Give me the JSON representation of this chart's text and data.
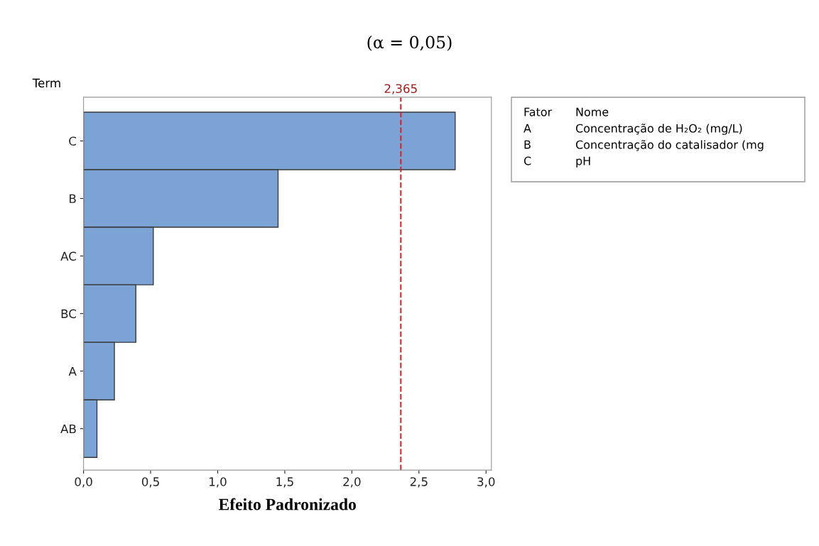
{
  "chart_data": {
    "type": "bar",
    "orientation": "horizontal",
    "title": "(α = 0,05)",
    "xlabel": "Efeito Padronizado",
    "ylabel": "Term",
    "categories": [
      "C",
      "B",
      "AC",
      "BC",
      "A",
      "AB"
    ],
    "values": [
      2.77,
      1.45,
      0.52,
      0.39,
      0.23,
      0.1
    ],
    "color": "#7ba3d6",
    "xlim": [
      0,
      3.04
    ],
    "xticks": [
      {
        "value": 0,
        "label": "0,0"
      },
      {
        "value": 0.5,
        "label": "0,5"
      },
      {
        "value": 1.0,
        "label": "1,0"
      },
      {
        "value": 1.5,
        "label": "1,5"
      },
      {
        "value": 2.0,
        "label": "2,0"
      },
      {
        "value": 2.5,
        "label": "2,5"
      },
      {
        "value": 3.0,
        "label": "3,0"
      }
    ],
    "ref_lines": [
      {
        "axis": "x",
        "value": 2.365,
        "label": "2,365",
        "color": "#d62728",
        "line_style": "dashed"
      }
    ],
    "annotations": [
      "Fator",
      "Nome",
      "A",
      "Concentração de H₂O₂ (mg/L)",
      "B",
      "Concentração do catalisador (mg",
      "C",
      "pH"
    ],
    "grid": false
  }
}
